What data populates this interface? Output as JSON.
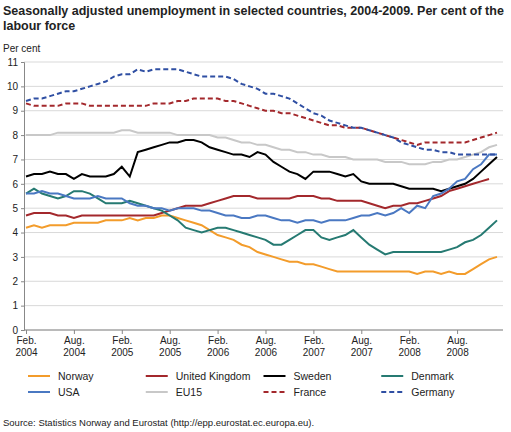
{
  "chart_data": {
    "type": "line",
    "title": "Seasonally adjusted unemployment in selected countries, 2004-2009. Per cent of the labour force",
    "y_label": "Per cent",
    "source": "Source: Statistics Norway and Eurostat (http://epp.eurostat.ec.europa.eu).",
    "categories": [
      "Feb. 2004",
      null,
      null,
      null,
      null,
      null,
      "Aug. 2004",
      null,
      null,
      null,
      null,
      null,
      "Feb. 2005",
      null,
      null,
      null,
      null,
      null,
      "Aug. 2005",
      null,
      null,
      null,
      null,
      null,
      "Feb. 2006",
      null,
      null,
      null,
      null,
      null,
      "Aug. 2006",
      null,
      null,
      null,
      null,
      null,
      "Feb. 2007",
      null,
      null,
      null,
      null,
      null,
      "Aug. 2007",
      null,
      null,
      null,
      null,
      null,
      "Feb. 2008",
      null,
      null,
      null,
      null,
      null,
      "Aug. 2008",
      null,
      null,
      null,
      null,
      null
    ],
    "ylim": [
      0,
      11
    ],
    "yticks": [
      0,
      1,
      2,
      3,
      4,
      5,
      6,
      7,
      8,
      9,
      10,
      11
    ],
    "grid": true,
    "legend": "bottom",
    "series": [
      {
        "name": "Norway",
        "color": "#f39c2b",
        "line_style": "solid",
        "values": [
          4.2,
          4.3,
          4.2,
          4.3,
          4.3,
          4.3,
          4.4,
          4.4,
          4.4,
          4.4,
          4.5,
          4.5,
          4.5,
          4.6,
          4.5,
          4.6,
          4.6,
          4.7,
          4.7,
          4.6,
          4.5,
          4.4,
          4.3,
          4.1,
          3.9,
          3.8,
          3.7,
          3.5,
          3.4,
          3.2,
          3.1,
          3.0,
          2.9,
          2.8,
          2.8,
          2.7,
          2.7,
          2.6,
          2.5,
          2.4,
          2.4,
          2.4,
          2.4,
          2.4,
          2.4,
          2.4,
          2.4,
          2.4,
          2.4,
          2.3,
          2.4,
          2.4,
          2.3,
          2.4,
          2.3,
          2.3,
          2.5,
          2.7,
          2.9,
          3.0
        ]
      },
      {
        "name": "United Kingdom",
        "color": "#a3282c",
        "line_style": "solid",
        "values": [
          4.7,
          4.8,
          4.8,
          4.8,
          4.7,
          4.7,
          4.6,
          4.7,
          4.7,
          4.7,
          4.7,
          4.7,
          4.7,
          4.7,
          4.7,
          4.7,
          4.7,
          4.8,
          4.9,
          5.0,
          5.1,
          5.1,
          5.1,
          5.2,
          5.3,
          5.4,
          5.5,
          5.5,
          5.5,
          5.4,
          5.4,
          5.4,
          5.4,
          5.4,
          5.5,
          5.5,
          5.5,
          5.4,
          5.4,
          5.3,
          5.3,
          5.3,
          5.3,
          5.2,
          5.1,
          5.0,
          5.1,
          5.1,
          5.2,
          5.2,
          5.3,
          5.4,
          5.5,
          5.7,
          5.8,
          5.9,
          6.0,
          6.1,
          6.2,
          null
        ]
      },
      {
        "name": "Sweden",
        "color": "#000000",
        "line_style": "solid",
        "values": [
          6.3,
          6.4,
          6.4,
          6.5,
          6.4,
          6.4,
          6.2,
          6.4,
          6.3,
          6.3,
          6.3,
          6.4,
          6.7,
          6.3,
          7.3,
          7.4,
          7.5,
          7.6,
          7.7,
          7.7,
          7.8,
          7.8,
          7.7,
          7.5,
          7.4,
          7.3,
          7.2,
          7.2,
          7.1,
          7.3,
          7.2,
          6.9,
          6.7,
          6.5,
          6.4,
          6.2,
          6.5,
          6.5,
          6.5,
          6.4,
          6.3,
          6.4,
          6.1,
          6.0,
          6.0,
          6.0,
          6.0,
          5.9,
          5.8,
          5.8,
          5.8,
          5.8,
          5.7,
          5.8,
          5.9,
          6.0,
          6.2,
          6.5,
          6.8,
          7.1
        ]
      },
      {
        "name": "Denmark",
        "color": "#267a72",
        "line_style": "solid",
        "values": [
          5.6,
          5.8,
          5.6,
          5.5,
          5.4,
          5.5,
          5.7,
          5.7,
          5.6,
          5.4,
          5.2,
          5.2,
          5.2,
          5.3,
          5.2,
          5.1,
          5.0,
          4.9,
          4.7,
          4.5,
          4.2,
          4.1,
          4.0,
          4.1,
          4.2,
          4.2,
          4.1,
          4.0,
          3.9,
          3.8,
          3.7,
          3.5,
          3.5,
          3.7,
          3.9,
          4.1,
          4.1,
          3.8,
          3.7,
          3.8,
          3.9,
          4.1,
          3.8,
          3.5,
          3.3,
          3.1,
          3.2,
          3.2,
          3.2,
          3.2,
          3.2,
          3.2,
          3.2,
          3.3,
          3.4,
          3.6,
          3.7,
          3.9,
          4.2,
          4.5
        ]
      },
      {
        "name": "USA",
        "color": "#4a78c2",
        "line_style": "solid",
        "values": [
          5.6,
          5.6,
          5.7,
          5.6,
          5.6,
          5.5,
          5.4,
          5.4,
          5.4,
          5.5,
          5.4,
          5.4,
          5.4,
          5.2,
          5.1,
          5.1,
          5.0,
          5.0,
          4.9,
          5.0,
          5.0,
          5.0,
          4.9,
          4.9,
          4.8,
          4.7,
          4.7,
          4.6,
          4.6,
          4.7,
          4.7,
          4.6,
          4.5,
          4.5,
          4.4,
          4.5,
          4.5,
          4.4,
          4.5,
          4.5,
          4.5,
          4.6,
          4.7,
          4.7,
          4.8,
          4.7,
          4.8,
          5.0,
          4.8,
          5.1,
          5.0,
          5.5,
          5.6,
          5.8,
          6.1,
          6.2,
          6.6,
          6.8,
          7.2,
          7.2
        ]
      },
      {
        "name": "EU15",
        "color": "#c8c8c8",
        "line_style": "solid",
        "values": [
          8.0,
          8.0,
          8.0,
          8.0,
          8.1,
          8.1,
          8.1,
          8.1,
          8.1,
          8.1,
          8.1,
          8.1,
          8.2,
          8.2,
          8.1,
          8.1,
          8.1,
          8.1,
          8.1,
          8.0,
          8.0,
          8.0,
          8.0,
          8.0,
          7.9,
          7.9,
          7.8,
          7.7,
          7.7,
          7.6,
          7.6,
          7.5,
          7.4,
          7.4,
          7.3,
          7.3,
          7.2,
          7.2,
          7.1,
          7.1,
          7.1,
          7.0,
          7.0,
          7.0,
          7.0,
          6.9,
          6.9,
          6.9,
          6.8,
          6.8,
          6.8,
          6.9,
          6.9,
          7.0,
          7.0,
          7.1,
          7.2,
          7.3,
          7.5,
          7.6
        ]
      },
      {
        "name": "France",
        "color": "#a3282c",
        "line_style": "dashed",
        "values": [
          9.3,
          9.2,
          9.2,
          9.2,
          9.2,
          9.3,
          9.3,
          9.3,
          9.2,
          9.2,
          9.2,
          9.2,
          9.2,
          9.2,
          9.2,
          9.2,
          9.3,
          9.3,
          9.3,
          9.4,
          9.4,
          9.5,
          9.5,
          9.5,
          9.5,
          9.4,
          9.4,
          9.3,
          9.2,
          9.1,
          9.0,
          9.0,
          8.9,
          8.9,
          8.8,
          8.7,
          8.6,
          8.5,
          8.4,
          8.4,
          8.3,
          8.3,
          8.3,
          8.2,
          8.1,
          8.0,
          7.9,
          7.8,
          7.7,
          7.6,
          7.7,
          7.7,
          7.7,
          7.7,
          7.7,
          7.7,
          7.8,
          7.9,
          8.0,
          8.1
        ]
      },
      {
        "name": "Germany",
        "color": "#2f4fa3",
        "line_style": "dashed",
        "values": [
          9.4,
          9.5,
          9.5,
          9.6,
          9.7,
          9.8,
          9.8,
          9.9,
          10.0,
          10.1,
          10.2,
          10.4,
          10.5,
          10.5,
          10.7,
          10.6,
          10.7,
          10.7,
          10.7,
          10.7,
          10.6,
          10.5,
          10.4,
          10.4,
          10.4,
          10.4,
          10.3,
          10.1,
          10.0,
          9.9,
          9.7,
          9.7,
          9.6,
          9.5,
          9.3,
          9.1,
          8.9,
          8.8,
          8.6,
          8.5,
          8.4,
          8.3,
          8.3,
          8.2,
          8.1,
          8.0,
          7.9,
          7.7,
          7.6,
          7.5,
          7.4,
          7.4,
          7.3,
          7.3,
          7.2,
          7.2,
          7.2,
          7.2,
          7.2,
          7.2
        ]
      }
    ]
  }
}
